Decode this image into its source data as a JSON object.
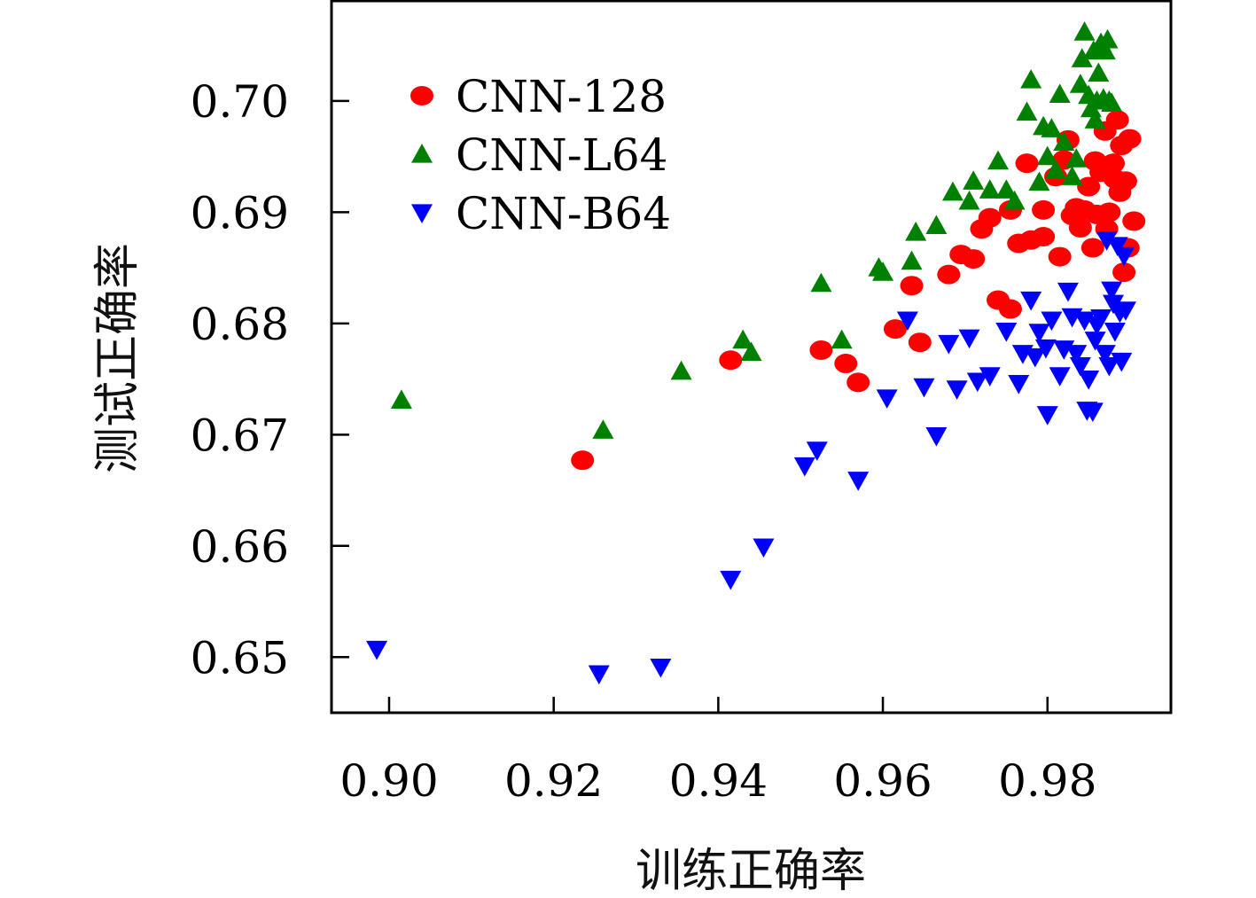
{
  "chart_data": {
    "type": "scatter",
    "xlabel": "训练正确率",
    "ylabel": "测试正确率",
    "xlim": [
      0.893,
      0.995
    ],
    "ylim": [
      0.645,
      0.709
    ],
    "x_ticks": [
      "0.90",
      "0.92",
      "0.94",
      "0.96",
      "0.98"
    ],
    "y_ticks": [
      "0.65",
      "0.66",
      "0.67",
      "0.68",
      "0.69",
      "0.70"
    ],
    "grid": false,
    "legend_position": "top-left",
    "series": [
      {
        "name": "CNN-128",
        "marker": "circle",
        "color": "#ff0000",
        "points": [
          [
            0.9235,
            0.6677
          ],
          [
            0.9415,
            0.6767
          ],
          [
            0.9525,
            0.6776
          ],
          [
            0.9555,
            0.6764
          ],
          [
            0.957,
            0.6747
          ],
          [
            0.9615,
            0.6795
          ],
          [
            0.9635,
            0.6834
          ],
          [
            0.9645,
            0.6783
          ],
          [
            0.968,
            0.6844
          ],
          [
            0.9695,
            0.6862
          ],
          [
            0.971,
            0.6858
          ],
          [
            0.972,
            0.6885
          ],
          [
            0.973,
            0.6895
          ],
          [
            0.974,
            0.6821
          ],
          [
            0.9755,
            0.6813
          ],
          [
            0.9755,
            0.6902
          ],
          [
            0.9765,
            0.6872
          ],
          [
            0.9775,
            0.6944
          ],
          [
            0.978,
            0.6875
          ],
          [
            0.9795,
            0.6878
          ],
          [
            0.9795,
            0.6902
          ],
          [
            0.981,
            0.6932
          ],
          [
            0.9815,
            0.686
          ],
          [
            0.982,
            0.6947
          ],
          [
            0.9825,
            0.6965
          ],
          [
            0.983,
            0.6897
          ],
          [
            0.9835,
            0.6904
          ],
          [
            0.984,
            0.6886
          ],
          [
            0.9845,
            0.6902
          ],
          [
            0.985,
            0.6923
          ],
          [
            0.9855,
            0.6868
          ],
          [
            0.9858,
            0.6946
          ],
          [
            0.986,
            0.6898
          ],
          [
            0.9865,
            0.6936
          ],
          [
            0.987,
            0.6973
          ],
          [
            0.9872,
            0.6885
          ],
          [
            0.9875,
            0.69
          ],
          [
            0.988,
            0.6944
          ],
          [
            0.9882,
            0.693
          ],
          [
            0.9885,
            0.6983
          ],
          [
            0.9888,
            0.6918
          ],
          [
            0.989,
            0.696
          ],
          [
            0.9893,
            0.6846
          ],
          [
            0.9895,
            0.6928
          ],
          [
            0.9898,
            0.6868
          ],
          [
            0.99,
            0.6966
          ],
          [
            0.9905,
            0.6892
          ]
        ]
      },
      {
        "name": "CNN-L64",
        "marker": "triangle-up",
        "color": "#008000",
        "points": [
          [
            0.9015,
            0.6731
          ],
          [
            0.926,
            0.6704
          ],
          [
            0.9355,
            0.6757
          ],
          [
            0.943,
            0.6785
          ],
          [
            0.944,
            0.6774
          ],
          [
            0.9525,
            0.6836
          ],
          [
            0.955,
            0.6785
          ],
          [
            0.9595,
            0.685
          ],
          [
            0.96,
            0.6846
          ],
          [
            0.9635,
            0.6856
          ],
          [
            0.964,
            0.6882
          ],
          [
            0.9665,
            0.6888
          ],
          [
            0.9685,
            0.6918
          ],
          [
            0.9705,
            0.691
          ],
          [
            0.971,
            0.6928
          ],
          [
            0.973,
            0.692
          ],
          [
            0.974,
            0.6946
          ],
          [
            0.975,
            0.692
          ],
          [
            0.976,
            0.691
          ],
          [
            0.9775,
            0.699
          ],
          [
            0.978,
            0.7019
          ],
          [
            0.979,
            0.6927
          ],
          [
            0.9795,
            0.6977
          ],
          [
            0.98,
            0.695
          ],
          [
            0.9805,
            0.6975
          ],
          [
            0.981,
            0.6938
          ],
          [
            0.9815,
            0.7006
          ],
          [
            0.982,
            0.6963
          ],
          [
            0.983,
            0.6932
          ],
          [
            0.9835,
            0.6948
          ],
          [
            0.984,
            0.7015
          ],
          [
            0.9842,
            0.7038
          ],
          [
            0.9845,
            0.7062
          ],
          [
            0.985,
            0.7005
          ],
          [
            0.9853,
            0.6993
          ],
          [
            0.9856,
            0.7045
          ],
          [
            0.9858,
            0.6983
          ],
          [
            0.986,
            0.7
          ],
          [
            0.9862,
            0.7025
          ],
          [
            0.9865,
            0.7052
          ],
          [
            0.9868,
            0.7002
          ],
          [
            0.987,
            0.7045
          ],
          [
            0.9873,
            0.7055
          ],
          [
            0.9875,
            0.7
          ],
          [
            0.9878,
            0.6998
          ]
        ]
      },
      {
        "name": "CNN-B64",
        "marker": "triangle-down",
        "color": "#0000ff",
        "points": [
          [
            0.8985,
            0.6507
          ],
          [
            0.9255,
            0.6485
          ],
          [
            0.933,
            0.6491
          ],
          [
            0.9415,
            0.657
          ],
          [
            0.9455,
            0.6599
          ],
          [
            0.9505,
            0.6672
          ],
          [
            0.952,
            0.6686
          ],
          [
            0.957,
            0.6659
          ],
          [
            0.9605,
            0.6733
          ],
          [
            0.963,
            0.6803
          ],
          [
            0.965,
            0.6743
          ],
          [
            0.9665,
            0.6699
          ],
          [
            0.968,
            0.6782
          ],
          [
            0.969,
            0.6741
          ],
          [
            0.9705,
            0.6787
          ],
          [
            0.9715,
            0.6748
          ],
          [
            0.973,
            0.6753
          ],
          [
            0.975,
            0.6793
          ],
          [
            0.9765,
            0.6746
          ],
          [
            0.977,
            0.6773
          ],
          [
            0.978,
            0.6821
          ],
          [
            0.9785,
            0.677
          ],
          [
            0.979,
            0.6792
          ],
          [
            0.9798,
            0.6778
          ],
          [
            0.98,
            0.6718
          ],
          [
            0.9805,
            0.6803
          ],
          [
            0.9815,
            0.6753
          ],
          [
            0.982,
            0.6777
          ],
          [
            0.9825,
            0.6829
          ],
          [
            0.983,
            0.6806
          ],
          [
            0.9835,
            0.6773
          ],
          [
            0.984,
            0.6762
          ],
          [
            0.9845,
            0.6803
          ],
          [
            0.9848,
            0.6722
          ],
          [
            0.985,
            0.675
          ],
          [
            0.9855,
            0.6721
          ],
          [
            0.9858,
            0.6785
          ],
          [
            0.986,
            0.6799
          ],
          [
            0.9865,
            0.6805
          ],
          [
            0.987,
            0.6773
          ],
          [
            0.9872,
            0.6875
          ],
          [
            0.9875,
            0.6762
          ],
          [
            0.9878,
            0.683
          ],
          [
            0.988,
            0.6818
          ],
          [
            0.9882,
            0.6793
          ],
          [
            0.9885,
            0.687
          ],
          [
            0.9888,
            0.681
          ],
          [
            0.989,
            0.6766
          ],
          [
            0.9893,
            0.6861
          ],
          [
            0.9895,
            0.6812
          ]
        ]
      }
    ]
  }
}
